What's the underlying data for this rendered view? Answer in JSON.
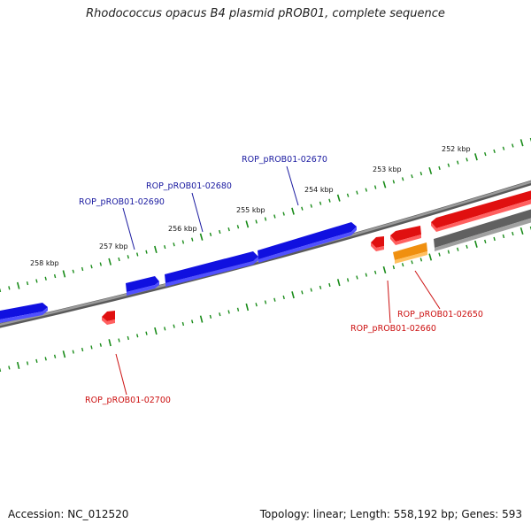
{
  "title": "Rhodococcus opacus B4 plasmid pROB01, complete sequence",
  "footer": {
    "accession": "Accession: NC_012520",
    "summary": "Topology: linear; Length: 558,192 bp; Genes: 593"
  },
  "colors": {
    "forward_gene": "#1010e0",
    "reverse_gene": "#e01010",
    "pseudo_gene": "#f09010",
    "backbone": "#808080",
    "tick": "#1a8c1a",
    "forward_label": "#1a1aa0",
    "reverse_label": "#cc1010"
  },
  "kbp_labels": [
    {
      "text": "252 kbp",
      "kb": 252
    },
    {
      "text": "253 kbp",
      "kb": 253
    },
    {
      "text": "254 kbp",
      "kb": 254
    },
    {
      "text": "255 kbp",
      "kb": 255
    },
    {
      "text": "256 kbp",
      "kb": 256
    },
    {
      "text": "257 kbp",
      "kb": 257
    },
    {
      "text": "258 kbp",
      "kb": 258
    }
  ],
  "genes": [
    {
      "label": "ROP_pROB01-02670",
      "strand": "forward"
    },
    {
      "label": "ROP_pROB01-02680",
      "strand": "forward"
    },
    {
      "label": "ROP_pROB01-02690",
      "strand": "forward"
    },
    {
      "label": "ROP_pROB01-02650",
      "strand": "reverse"
    },
    {
      "label": "ROP_pROB01-02660",
      "strand": "reverse"
    },
    {
      "label": "ROP_pROB01-02700",
      "strand": "reverse"
    }
  ]
}
